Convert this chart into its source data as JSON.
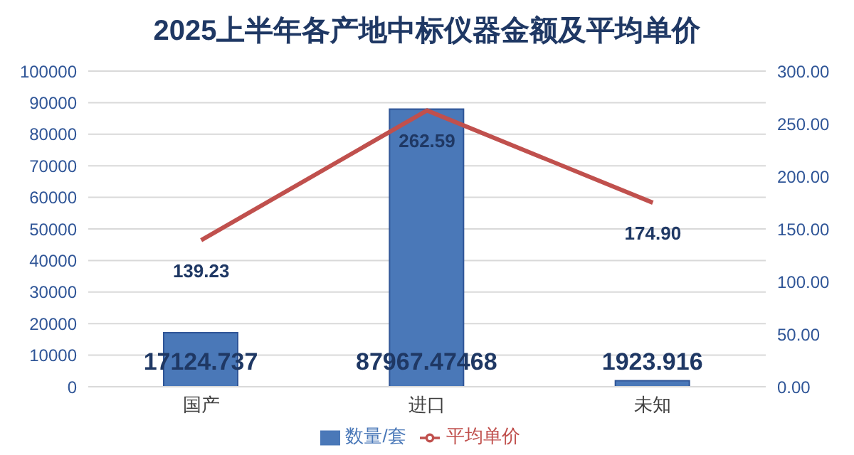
{
  "chart_data": {
    "type": "bar",
    "title": "2025上半年各产地中标仪器金额及平均单价",
    "categories": [
      "国产",
      "进口",
      "未知"
    ],
    "series": [
      {
        "name": "数量/套",
        "color": "#4a78b8",
        "values": [
          17124.737,
          87967.47468,
          1923.916
        ],
        "value_labels": [
          "17124.737",
          "87967.47468",
          "1923.916"
        ]
      },
      {
        "name": "平均单价",
        "type": "line",
        "axis": "y2",
        "color": "#c0504d",
        "values": [
          139.23,
          262.59,
          174.9
        ],
        "value_labels": [
          "139.23",
          "262.59",
          "174.90"
        ]
      }
    ],
    "ylim": [
      0,
      100000
    ],
    "yticks": [
      0,
      10000,
      20000,
      30000,
      40000,
      50000,
      60000,
      70000,
      80000,
      90000,
      100000
    ],
    "y2lim": [
      0,
      300
    ],
    "y2ticks": [
      {
        "value": 0,
        "label": "0.00"
      },
      {
        "value": 50,
        "label": "50.00"
      },
      {
        "value": 100,
        "label": "100.00"
      },
      {
        "value": 150,
        "label": "150.00"
      },
      {
        "value": 200,
        "label": "200.00"
      },
      {
        "value": 250,
        "label": "250.00"
      },
      {
        "value": 300,
        "label": "300.00"
      }
    ],
    "grid": "y",
    "legend": "bottom",
    "marker": "none",
    "line_style": "solid"
  }
}
